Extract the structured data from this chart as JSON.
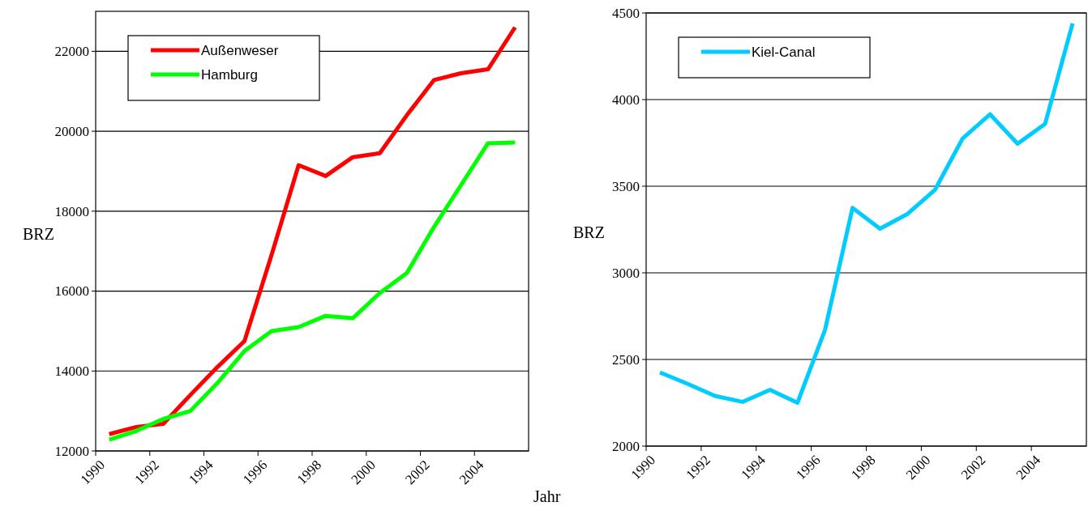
{
  "chart_data": [
    {
      "type": "line",
      "xlabel": "Jahr",
      "ylabel": "BRZ",
      "x": [
        1990.5,
        1991.5,
        1992.5,
        1993.5,
        1994.5,
        1995.5,
        1996.5,
        1997.5,
        1998.5,
        1999.5,
        2000.5,
        2001.5,
        2002.5,
        2003.5,
        2004.5,
        2005.5
      ],
      "series": [
        {
          "name": "Außenweser",
          "color": "#ff0000",
          "values": [
            12420,
            12600,
            12680,
            13400,
            14100,
            14750,
            16900,
            19150,
            18880,
            19350,
            19450,
            20400,
            21280,
            21450,
            21550,
            22600
          ]
        },
        {
          "name": "Hamburg",
          "color": "#00ff00",
          "values": [
            12280,
            12500,
            12800,
            13000,
            13700,
            14500,
            15000,
            15100,
            15380,
            15320,
            15950,
            16450,
            17600,
            18650,
            19700,
            19720
          ]
        }
      ],
      "xlim": [
        1990,
        2006
      ],
      "xticks": [
        1990,
        1992,
        1994,
        1996,
        1998,
        2000,
        2002,
        2004
      ],
      "ylim": [
        12000,
        23000
      ],
      "yticks": [
        12000,
        14000,
        16000,
        18000,
        20000,
        22000
      ],
      "grid": "y",
      "legend": "top left",
      "marker": "none",
      "line_style": "solid"
    },
    {
      "type": "line",
      "ylabel": "BRZ",
      "x": [
        1990.5,
        1991.5,
        1992.5,
        1993.5,
        1994.5,
        1995.5,
        1996.5,
        1997.5,
        1998.5,
        1999.5,
        2000.5,
        2001.5,
        2002.5,
        2003.5,
        2004.5,
        2005.5
      ],
      "series": [
        {
          "name": "Kiel-Canal",
          "color": "#00ccff",
          "values": [
            2425,
            2360,
            2290,
            2255,
            2325,
            2250,
            2670,
            3375,
            3255,
            3340,
            3480,
            3775,
            3915,
            3745,
            3860,
            4440
          ]
        }
      ],
      "xlim": [
        1990,
        2006
      ],
      "xticks": [
        1990,
        1992,
        1994,
        1996,
        1998,
        2000,
        2002,
        2004
      ],
      "ylim": [
        2000,
        4500
      ],
      "yticks": [
        2000,
        2500,
        3000,
        3500,
        4000,
        4500
      ],
      "grid": "y",
      "legend": "top left",
      "marker": "none",
      "line_style": "solid"
    }
  ]
}
